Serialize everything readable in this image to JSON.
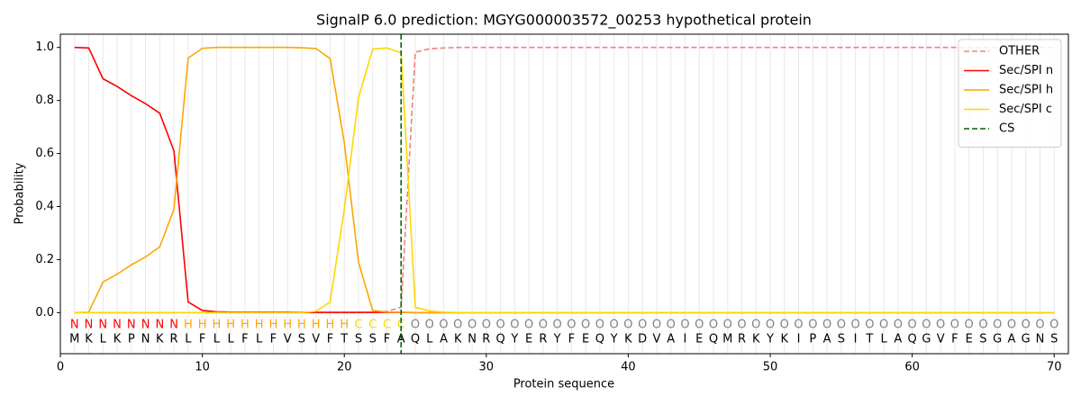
{
  "chart_data": {
    "type": "line",
    "title": "SignalP 6.0 prediction: MGYG000003572_00253 hypothetical protein",
    "xlabel": "Protein sequence",
    "ylabel": "Probability",
    "xlim": [
      0,
      71
    ],
    "ylim": [
      -0.155,
      1.05
    ],
    "xticks": [
      0,
      10,
      20,
      30,
      40,
      50,
      60,
      70
    ],
    "yticks": [
      {
        "value": 0,
        "label": "0.0"
      },
      {
        "value": 0.2,
        "label": "0.2"
      },
      {
        "value": 0.4,
        "label": "0.4"
      },
      {
        "value": 0.6,
        "label": "0.6"
      },
      {
        "value": 0.8,
        "label": "0.8"
      },
      {
        "value": 1.0,
        "label": "1.0"
      }
    ],
    "legend": "upper right",
    "x": [
      1,
      2,
      3,
      4,
      5,
      6,
      7,
      8,
      9,
      10,
      11,
      12,
      13,
      14,
      15,
      16,
      17,
      18,
      19,
      20,
      21,
      22,
      23,
      24,
      25,
      26,
      27,
      28,
      29,
      30,
      31,
      32,
      33,
      34,
      35,
      36,
      37,
      38,
      39,
      40,
      41,
      42,
      43,
      44,
      45,
      46,
      47,
      48,
      49,
      50,
      51,
      52,
      53,
      54,
      55,
      56,
      57,
      58,
      59,
      60,
      61,
      62,
      63,
      64,
      65,
      66,
      67,
      68,
      69,
      70
    ],
    "residues": [
      "M",
      "K",
      "L",
      "K",
      "P",
      "N",
      "K",
      "R",
      "L",
      "F",
      "L",
      "L",
      "F",
      "L",
      "F",
      "V",
      "S",
      "V",
      "F",
      "T",
      "S",
      "S",
      "F",
      "A",
      "Q",
      "L",
      "A",
      "K",
      "N",
      "R",
      "Q",
      "Y",
      "E",
      "R",
      "Y",
      "F",
      "E",
      "Q",
      "Y",
      "K",
      "D",
      "V",
      "A",
      "I",
      "E",
      "Q",
      "M",
      "R",
      "K",
      "Y",
      "K",
      "I",
      "P",
      "A",
      "S",
      "I",
      "T",
      "L",
      "A",
      "Q",
      "G",
      "V",
      "F",
      "E",
      "S",
      "G",
      "A",
      "G",
      "N",
      "S"
    ],
    "labels": [
      "N",
      "N",
      "N",
      "N",
      "N",
      "N",
      "N",
      "N",
      "H",
      "H",
      "H",
      "H",
      "H",
      "H",
      "H",
      "H",
      "H",
      "H",
      "H",
      "H",
      "C",
      "C",
      "C",
      "C",
      "O",
      "O",
      "O",
      "O",
      "O",
      "O",
      "O",
      "O",
      "O",
      "O",
      "O",
      "O",
      "O",
      "O",
      "O",
      "O",
      "O",
      "O",
      "O",
      "O",
      "O",
      "O",
      "O",
      "O",
      "O",
      "O",
      "O",
      "O",
      "O",
      "O",
      "O",
      "O",
      "O",
      "O",
      "O",
      "O",
      "O",
      "O",
      "O",
      "O",
      "O",
      "O",
      "O",
      "O",
      "O",
      "O"
    ],
    "label_colors": {
      "N": "#ff0000",
      "H": "#ffa500",
      "C": "#ffd700",
      "O": "#808080"
    },
    "series": [
      {
        "name": "OTHER",
        "color": "#f08080",
        "dash": true,
        "values": [
          0,
          0,
          0,
          0,
          0,
          0,
          0,
          0,
          0,
          0,
          0,
          0,
          0,
          0,
          0,
          0,
          0,
          0,
          0,
          0,
          0,
          0.001,
          0.005,
          0.02,
          0.982,
          0.995,
          0.998,
          1,
          1,
          1,
          1,
          1,
          1,
          1,
          1,
          1,
          1,
          1,
          1,
          1,
          1,
          1,
          1,
          1,
          1,
          1,
          1,
          1,
          1,
          1,
          1,
          1,
          1,
          1,
          1,
          1,
          1,
          1,
          1,
          1,
          1,
          1,
          1,
          1,
          1,
          1,
          1,
          1,
          1,
          1
        ]
      },
      {
        "name": "Sec/SPI n",
        "color": "#ff0000",
        "dash": false,
        "values": [
          1.0,
          0.998,
          0.882,
          0.853,
          0.818,
          0.788,
          0.752,
          0.61,
          0.04,
          0.008,
          0.003,
          0.002,
          0.002,
          0.002,
          0.002,
          0.002,
          0.001,
          0.001,
          0.001,
          0.001,
          0.001,
          0.001,
          0.001,
          0.001,
          0,
          0,
          0,
          0,
          0,
          0,
          0,
          0,
          0,
          0,
          0,
          0,
          0,
          0,
          0,
          0,
          0,
          0,
          0,
          0,
          0,
          0,
          0,
          0,
          0,
          0,
          0,
          0,
          0,
          0,
          0,
          0,
          0,
          0,
          0,
          0,
          0,
          0,
          0,
          0,
          0,
          0,
          0,
          0,
          0,
          0
        ]
      },
      {
        "name": "Sec/SPI h",
        "color": "#ffa500",
        "dash": false,
        "values": [
          0,
          0.002,
          0.115,
          0.145,
          0.18,
          0.21,
          0.248,
          0.39,
          0.96,
          0.997,
          1.0,
          1.0,
          1.0,
          1.0,
          1.0,
          1.0,
          0.999,
          0.996,
          0.958,
          0.64,
          0.19,
          0.008,
          0.002,
          0.001,
          0,
          0,
          0,
          0,
          0,
          0,
          0,
          0,
          0,
          0,
          0,
          0,
          0,
          0,
          0,
          0,
          0,
          0,
          0,
          0,
          0,
          0,
          0,
          0,
          0,
          0,
          0,
          0,
          0,
          0,
          0,
          0,
          0,
          0,
          0,
          0,
          0,
          0,
          0,
          0,
          0,
          0,
          0,
          0,
          0,
          0
        ]
      },
      {
        "name": "Sec/SPI c",
        "color": "#ffd700",
        "dash": false,
        "values": [
          0,
          0,
          0,
          0,
          0,
          0,
          0,
          0,
          0,
          0,
          0,
          0,
          0,
          0,
          0,
          0,
          0,
          0.005,
          0.04,
          0.39,
          0.81,
          0.994,
          0.998,
          0.98,
          0.02,
          0.006,
          0.002,
          0,
          0,
          0,
          0,
          0,
          0,
          0,
          0,
          0,
          0,
          0,
          0,
          0,
          0,
          0,
          0,
          0,
          0,
          0,
          0,
          0,
          0,
          0,
          0,
          0,
          0,
          0,
          0,
          0,
          0,
          0,
          0,
          0,
          0,
          0,
          0,
          0,
          0,
          0,
          0,
          0,
          0,
          0
        ]
      }
    ],
    "cs": {
      "name": "CS",
      "color": "#006400",
      "position": 24
    }
  }
}
